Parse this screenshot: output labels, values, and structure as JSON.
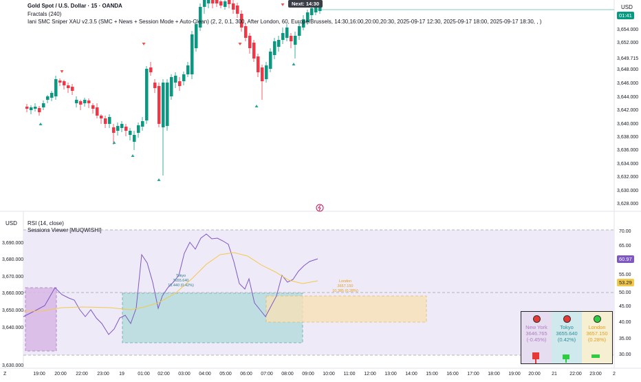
{
  "header": {
    "symbol": "Gold Spot / U.S. Dollar · 15 · OANDA",
    "indicator1": "Fractals (240)",
    "indicator2": "Iani SMC Sniper XAU v2.3.5 (SMC + News + Session Mode + Auto-Clean) (2, 2, 0.1, 300, After London, 60, Europe/Brussels, 14:30,16:00,20:00,20:30, 2025-09-17 12:30, 2025-09-17 18:00, 2025-09-17 18:30, , )",
    "currency": "USD",
    "next_label": "Next: 14:30"
  },
  "price_axis": {
    "labels": [
      "3,654.000",
      "3,652.000",
      "3,649.715",
      "3,648.000",
      "3,646.000",
      "3,644.000",
      "3,642.000",
      "3,640.000",
      "3,638.000",
      "3,636.000",
      "3,634.000",
      "3,632.000",
      "3,630.000",
      "3,628.000"
    ],
    "current_price": "01:41",
    "accent": "#089981"
  },
  "lower_pane": {
    "currency": "USD",
    "indicator1": "RSI (14, close)",
    "indicator2": "Sessions Viewer [MUQWISHI]",
    "left_axis": [
      "3,690.000",
      "3,680.000",
      "3,670.000",
      "3,660.000",
      "3,650.000",
      "3,640.000",
      "3,630.000"
    ],
    "right_axis": [
      "70.00",
      "65.00",
      "60.00",
      "55.00",
      "50.00",
      "45.00",
      "40.00",
      "35.00",
      "30.00"
    ],
    "rsi_value": "60.97",
    "ma_value": "53.29",
    "tokyo_box_label": [
      "Tokyo",
      "3655.640",
      "15.440 (0.42%)"
    ],
    "london_box_label": [
      "London",
      "3657.150",
      "10.385 (0.28%)"
    ]
  },
  "sessions_panel": {
    "new_york": {
      "name": "New York",
      "price": "3646.765",
      "change": "(-0.45%)",
      "color": "#e0e0ef",
      "status_color": "#e53935"
    },
    "tokyo": {
      "name": "Tokyo",
      "price": "3655.640",
      "change": "(0.42%)",
      "color": "#cfe9ec",
      "status_color": "#e53935"
    },
    "london": {
      "name": "London",
      "price": "3657.150",
      "change": "(0.28%)",
      "color": "#f7efd1",
      "status_color": "#2ecc40"
    }
  },
  "time_axis": [
    "Z",
    "19:00",
    "20:00",
    "22:00",
    "23:00",
    "19",
    "01:00",
    "02:00",
    "03:00",
    "04:00",
    "05:00",
    "06:00",
    "07:00",
    "08:00",
    "09:00",
    "10:00",
    "11:00",
    "12:00",
    "13:00",
    "14:00",
    "15:00",
    "16:00",
    "17:00",
    "18:00",
    "19:00",
    "20:00",
    "21",
    "22:00",
    "23:00",
    "2"
  ]
}
